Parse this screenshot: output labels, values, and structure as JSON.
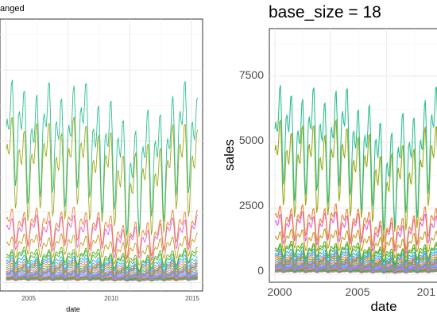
{
  "chart_data": [
    {
      "type": "line",
      "title": "anged",
      "xlabel": "date",
      "ylabel": "",
      "x_ticks": [
        "2005",
        "2010",
        "2015"
      ],
      "xlim": [
        1999.5,
        2015.9
      ],
      "ylim": [
        -300,
        9300
      ],
      "grid": true,
      "legend": "none",
      "series_count": 30
    },
    {
      "type": "line",
      "title": "base_size = 18",
      "xlabel": "date",
      "ylabel": "sales",
      "x_ticks": [
        "2000",
        "2005",
        "201"
      ],
      "y_ticks": [
        "0",
        "2500",
        "5000",
        "7500"
      ],
      "xlim": [
        1999.5,
        2015.9
      ],
      "ylim": [
        -300,
        9300
      ],
      "grid": true,
      "legend": "none",
      "series_count": 30
    }
  ],
  "series_levels": [
    {
      "color": "#2ebf91",
      "base": 4800,
      "amp": 2300
    },
    {
      "color": "#9aab1c",
      "base": 3900,
      "amp": 1900
    },
    {
      "color": "#ea8335",
      "base": 1900,
      "amp": 700
    },
    {
      "color": "#e55fd0",
      "base": 1700,
      "amp": 650
    },
    {
      "color": "#c79a18",
      "base": 1250,
      "amp": 450
    },
    {
      "color": "#68ad1d",
      "base": 900,
      "amp": 320
    },
    {
      "color": "#3bb33d",
      "base": 820,
      "amp": 280
    },
    {
      "color": "#27b3d6",
      "base": 700,
      "amp": 250
    },
    {
      "color": "#5aa3ee",
      "base": 620,
      "amp": 220
    },
    {
      "color": "#f07a69",
      "base": 560,
      "amp": 200
    },
    {
      "color": "#b59a00",
      "base": 500,
      "amp": 180
    },
    {
      "color": "#14b89d",
      "base": 450,
      "amp": 160
    },
    {
      "color": "#cc73f5",
      "base": 400,
      "amp": 140
    },
    {
      "color": "#dd8f2a",
      "base": 360,
      "amp": 120
    },
    {
      "color": "#46b06b",
      "base": 320,
      "amp": 110
    },
    {
      "color": "#8f8fff",
      "base": 290,
      "amp": 100
    },
    {
      "color": "#f564e3",
      "base": 260,
      "amp": 90
    },
    {
      "color": "#00b0f6",
      "base": 230,
      "amp": 80
    },
    {
      "color": "#e76bf3",
      "base": 200,
      "amp": 70
    },
    {
      "color": "#f8766d",
      "base": 180,
      "amp": 60
    },
    {
      "color": "#a3a500",
      "base": 160,
      "amp": 55
    },
    {
      "color": "#00bf7d",
      "base": 145,
      "amp": 50
    },
    {
      "color": "#39b600",
      "base": 130,
      "amp": 45
    },
    {
      "color": "#9590ff",
      "base": 120,
      "amp": 40
    },
    {
      "color": "#d89000",
      "base": 110,
      "amp": 38
    },
    {
      "color": "#00bcd8",
      "base": 100,
      "amp": 35
    },
    {
      "color": "#ff62bc",
      "base": 95,
      "amp": 32
    },
    {
      "color": "#e6a21a",
      "base": 90,
      "amp": 30
    },
    {
      "color": "#e85ecf",
      "base": 85,
      "amp": 28
    },
    {
      "color": "#da5fe0",
      "base": 80,
      "amp": 25
    }
  ]
}
